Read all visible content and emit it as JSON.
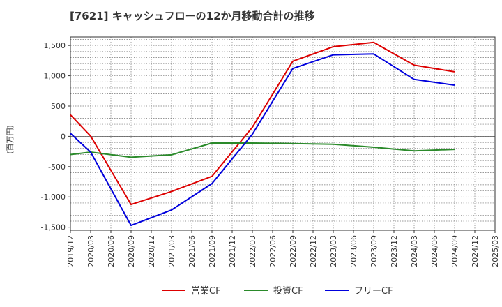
{
  "chart_data": {
    "type": "line",
    "title": "[7621]  キャッシュフローの12か月移動合計の推移",
    "ylabel": "(百万円)",
    "xlabel": "",
    "ylim": [
      -1550,
      1640
    ],
    "yticks": [
      1500,
      1000,
      500,
      0,
      -500,
      -1000,
      -1500
    ],
    "ytick_labels": [
      "1,500",
      "1,000",
      "500",
      "0",
      "-500",
      "-1,000",
      "-1,500"
    ],
    "categories": [
      "2019/12",
      "2020/03",
      "2020/06",
      "2020/09",
      "2020/12",
      "2021/03",
      "2021/06",
      "2021/09",
      "2021/12",
      "2022/03",
      "2022/06",
      "2022/09",
      "2022/12",
      "2023/03",
      "2023/06",
      "2023/09",
      "2023/12",
      "2024/03",
      "2024/06",
      "2024/09",
      "2024/12",
      "2025/03"
    ],
    "grid": true,
    "legend_position": "bottom",
    "series": [
      {
        "name": "営業CF",
        "color": "#dd0000",
        "values": [
          355,
          5,
          null,
          -1125,
          null,
          -910,
          null,
          -660,
          null,
          150,
          null,
          1240,
          null,
          1480,
          null,
          1550,
          null,
          1175,
          null,
          1065,
          null,
          null
        ]
      },
      {
        "name": "投資CF",
        "color": "#2a8a2a",
        "values": [
          -300,
          -260,
          null,
          -345,
          null,
          -305,
          null,
          -110,
          null,
          -110,
          null,
          -120,
          null,
          -130,
          null,
          -180,
          null,
          -240,
          null,
          -215,
          null,
          null
        ]
      },
      {
        "name": "フリーCF",
        "color": "#0000dd",
        "values": [
          50,
          -260,
          null,
          -1470,
          null,
          -1215,
          null,
          -780,
          null,
          35,
          null,
          1120,
          null,
          1345,
          null,
          1360,
          null,
          940,
          null,
          845,
          null,
          null
        ]
      }
    ]
  }
}
